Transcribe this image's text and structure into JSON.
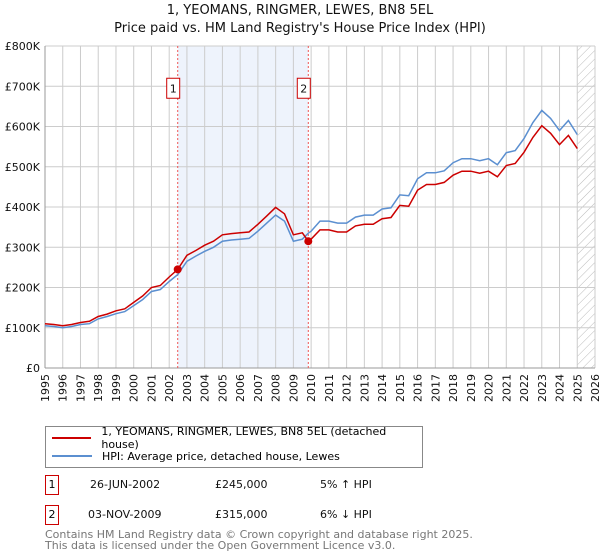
{
  "chart_data": {
    "type": "line",
    "title": "1, YEOMANS, RINGMER, LEWES, BN8 5EL",
    "subtitle": "Price paid vs. HM Land Registry's House Price Index (HPI)",
    "xlim": [
      1995,
      2026
    ],
    "ylim": [
      0,
      800000
    ],
    "x_ticks": [
      "1995",
      "1996",
      "1997",
      "1998",
      "1999",
      "2000",
      "2001",
      "2002",
      "2003",
      "2004",
      "2005",
      "2006",
      "2007",
      "2008",
      "2009",
      "2010",
      "2011",
      "2012",
      "2013",
      "2014",
      "2015",
      "2016",
      "2017",
      "2018",
      "2019",
      "2020",
      "2021",
      "2022",
      "2023",
      "2024",
      "2025",
      "2026"
    ],
    "y_ticks": [
      {
        "v": 0,
        "label": "£0"
      },
      {
        "v": 100000,
        "label": "£100K"
      },
      {
        "v": 200000,
        "label": "£200K"
      },
      {
        "v": 300000,
        "label": "£300K"
      },
      {
        "v": 400000,
        "label": "£400K"
      },
      {
        "v": 500000,
        "label": "£500K"
      },
      {
        "v": 600000,
        "label": "£600K"
      },
      {
        "v": 700000,
        "label": "£700K"
      },
      {
        "v": 800000,
        "label": "£800K"
      }
    ],
    "grid": true,
    "shaded_period": [
      2002.48,
      2009.84
    ],
    "forecast_hatch_from": 2025.0,
    "series": [
      {
        "name": "1, YEOMANS, RINGMER, LEWES, BN8 5EL (detached house)",
        "color": "#cc0000",
        "x": [
          1995,
          1995.5,
          1996,
          1996.5,
          1997,
          1997.5,
          1998,
          1998.5,
          1999,
          1999.5,
          2000,
          2000.5,
          2001,
          2001.5,
          2002,
          2002.48,
          2003,
          2003.5,
          2004,
          2004.5,
          2005,
          2005.5,
          2006,
          2006.5,
          2007,
          2007.5,
          2008,
          2008.5,
          2009,
          2009.5,
          2009.84,
          2010,
          2010.5,
          2011,
          2011.5,
          2012,
          2012.5,
          2013,
          2013.5,
          2014,
          2014.5,
          2015,
          2015.5,
          2016,
          2016.5,
          2017,
          2017.5,
          2018,
          2018.5,
          2019,
          2019.5,
          2020,
          2020.5,
          2021,
          2021.5,
          2022,
          2022.5,
          2023,
          2023.5,
          2024,
          2024.5,
          2025
        ],
        "y": [
          110,
          108,
          105,
          108,
          113,
          116,
          128,
          134,
          142,
          147,
          163,
          179,
          200,
          205,
          226,
          245,
          280,
          292,
          305,
          315,
          331,
          334,
          336,
          338,
          357,
          378,
          399,
          383,
          331,
          336,
          315,
          320,
          343,
          343,
          338,
          338,
          353,
          357,
          357,
          371,
          374,
          404,
          402,
          442,
          456,
          456,
          461,
          479,
          489,
          489,
          484,
          489,
          475,
          503,
          508,
          536,
          573,
          602,
          583,
          555,
          578,
          545
        ]
      },
      {
        "name": "HPI: Average price, detached house, Lewes",
        "color": "#5b8fd0",
        "x": [
          1995,
          1995.5,
          1996,
          1996.5,
          1997,
          1997.5,
          1998,
          1998.5,
          1999,
          1999.5,
          2000,
          2000.5,
          2001,
          2001.5,
          2002,
          2002.48,
          2003,
          2003.5,
          2004,
          2004.5,
          2005,
          2005.5,
          2006,
          2006.5,
          2007,
          2007.5,
          2008,
          2008.5,
          2009,
          2009.5,
          2009.84,
          2010,
          2010.5,
          2011,
          2011.5,
          2012,
          2012.5,
          2013,
          2013.5,
          2014,
          2014.5,
          2015,
          2015.5,
          2016,
          2016.5,
          2017,
          2017.5,
          2018,
          2018.5,
          2019,
          2019.5,
          2020,
          2020.5,
          2021,
          2021.5,
          2022,
          2022.5,
          2023,
          2023.5,
          2024,
          2024.5,
          2025
        ],
        "y": [
          105,
          103,
          100,
          103,
          108,
          110,
          122,
          128,
          135,
          140,
          155,
          170,
          190,
          195,
          215,
          232,
          265,
          278,
          290,
          300,
          315,
          318,
          320,
          322,
          340,
          360,
          380,
          365,
          315,
          320,
          335,
          340,
          365,
          365,
          360,
          360,
          375,
          380,
          380,
          395,
          398,
          430,
          428,
          470,
          485,
          485,
          490,
          510,
          520,
          520,
          515,
          520,
          505,
          535,
          540,
          570,
          610,
          640,
          620,
          590,
          615,
          580
        ]
      }
    ],
    "y_units": "thousands GBP",
    "annotations": [
      {
        "label": "1",
        "x": 2002.48,
        "y": 245
      },
      {
        "label": "2",
        "x": 2009.84,
        "y": 315
      }
    ]
  },
  "legend": {
    "property": "1, YEOMANS, RINGMER, LEWES, BN8 5EL (detached house)",
    "hpi": "HPI: Average price, detached house, Lewes"
  },
  "transactions": [
    {
      "num": "1",
      "date": "26-JUN-2002",
      "price": "£245,000",
      "hpi": "5% ↑ HPI"
    },
    {
      "num": "2",
      "date": "03-NOV-2009",
      "price": "£315,000",
      "hpi": "6% ↓ HPI"
    }
  ],
  "footer": [
    "Contains HM Land Registry data © Crown copyright and database right 2025.",
    "This data is licensed under the Open Government Licence v3.0."
  ]
}
